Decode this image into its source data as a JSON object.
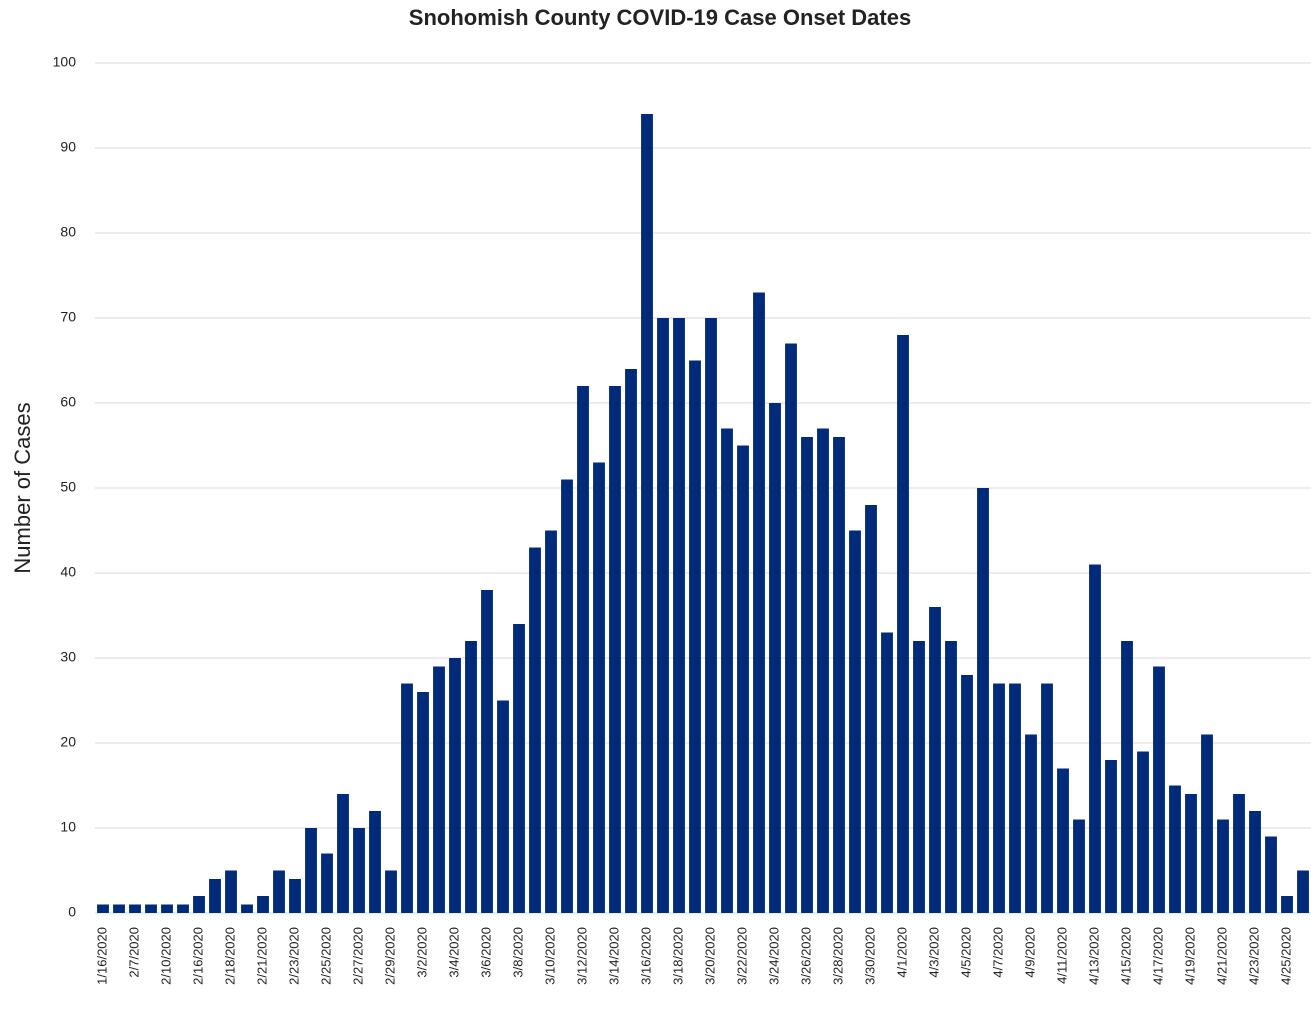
{
  "chart_data": {
    "type": "bar",
    "title": "Snohomish County COVID-19 Case Onset Dates",
    "y_label": "Number of Cases",
    "categories": [
      "1/16/2020",
      null,
      "2/7/2020",
      null,
      "2/10/2020",
      null,
      "2/16/2020",
      null,
      "2/18/2020",
      null,
      "2/21/2020",
      null,
      "2/23/2020",
      null,
      "2/25/2020",
      null,
      "2/27/2020",
      null,
      "2/29/2020",
      null,
      "3/2/2020",
      null,
      "3/4/2020",
      null,
      "3/6/2020",
      null,
      "3/8/2020",
      null,
      "3/10/2020",
      null,
      "3/12/2020",
      null,
      "3/14/2020",
      null,
      "3/16/2020",
      null,
      "3/18/2020",
      null,
      "3/20/2020",
      null,
      "3/22/2020",
      null,
      "3/24/2020",
      null,
      "3/26/2020",
      null,
      "3/28/2020",
      null,
      "3/30/2020",
      null,
      "4/1/2020",
      null,
      "4/3/2020",
      null,
      "4/5/2020",
      null,
      "4/7/2020",
      null,
      "4/9/2020",
      null,
      "4/11/2020",
      null,
      "4/13/2020",
      null,
      "4/15/2020",
      null,
      "4/17/2020",
      null,
      "4/19/2020",
      null,
      "4/21/2020",
      null,
      "4/23/2020",
      null,
      "4/25/2020",
      null
    ],
    "values": [
      1,
      1,
      1,
      1,
      1,
      1,
      2,
      4,
      5,
      1,
      2,
      5,
      4,
      10,
      7,
      14,
      10,
      12,
      5,
      27,
      26,
      29,
      30,
      32,
      38,
      25,
      34,
      43,
      45,
      51,
      62,
      53,
      62,
      64,
      94,
      70,
      70,
      65,
      70,
      57,
      55,
      73,
      60,
      67,
      56,
      57,
      56,
      45,
      48,
      33,
      68,
      32,
      36,
      32,
      28,
      50,
      27,
      27,
      21,
      27,
      17,
      11,
      41,
      18,
      32,
      19,
      29,
      15,
      14,
      21,
      11,
      14,
      12,
      9,
      2,
      5
    ],
    "color": "#002a7a",
    "ylim": [
      0,
      100
    ],
    "yticks": [
      0,
      10,
      20,
      30,
      40,
      50,
      60,
      70,
      80,
      90,
      100
    ],
    "grid": true
  }
}
